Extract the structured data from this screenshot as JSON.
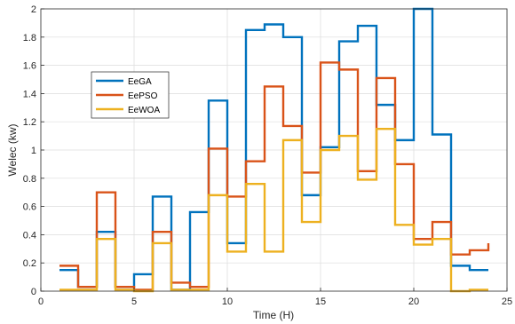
{
  "chart_data": {
    "type": "line",
    "step": "post",
    "title": "",
    "xlabel": "Time (H)",
    "ylabel": "Welec (kw)",
    "xlim": [
      0,
      25
    ],
    "ylim": [
      0,
      2
    ],
    "xticks": [
      0,
      5,
      10,
      15,
      20,
      25
    ],
    "yticks": [
      0,
      0.2,
      0.4,
      0.6,
      0.8,
      1,
      1.2,
      1.4,
      1.6,
      1.8,
      2
    ],
    "xtick_labels": [
      "0",
      "5",
      "10",
      "15",
      "20",
      "25"
    ],
    "ytick_labels": [
      "0",
      "0.2",
      "0.4",
      "0.6",
      "0.8",
      "1",
      "1.2",
      "1.4",
      "1.6",
      "1.8",
      "2"
    ],
    "grid": true,
    "legend": "upper-left",
    "x": [
      1,
      2,
      3,
      4,
      5,
      6,
      7,
      8,
      9,
      10,
      11,
      12,
      13,
      14,
      15,
      16,
      17,
      18,
      19,
      20,
      21,
      22,
      23,
      24
    ],
    "series": [
      {
        "name": "EeGA",
        "color": "#0072BD",
        "values": [
          0.15,
          0.03,
          0.42,
          0.03,
          0.12,
          0.67,
          0.01,
          0.56,
          1.35,
          0.34,
          1.85,
          1.89,
          1.8,
          0.68,
          1.02,
          1.77,
          1.88,
          1.32,
          1.07,
          2.0,
          1.11,
          0.18,
          0.15,
          0.15
        ]
      },
      {
        "name": "EePSO",
        "color": "#D95319",
        "values": [
          0.18,
          0.03,
          0.7,
          0.03,
          0.01,
          0.42,
          0.06,
          0.03,
          1.01,
          0.67,
          0.92,
          1.45,
          1.17,
          0.84,
          1.62,
          1.57,
          0.85,
          1.51,
          0.9,
          0.37,
          0.49,
          0.26,
          0.29,
          0.34
        ]
      },
      {
        "name": "EeWOA",
        "color": "#EDB120",
        "values": [
          0.01,
          0.01,
          0.37,
          0.01,
          0.0,
          0.34,
          0.01,
          0.01,
          0.68,
          0.28,
          0.76,
          0.28,
          1.07,
          0.49,
          1.0,
          1.1,
          0.79,
          1.15,
          0.47,
          0.33,
          0.37,
          0.0,
          0.01,
          0.01
        ]
      }
    ]
  }
}
